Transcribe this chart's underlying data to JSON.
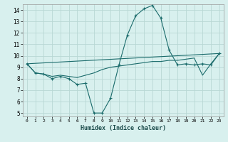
{
  "xlabel": "Humidex (Indice chaleur)",
  "xlim": [
    -0.5,
    23.5
  ],
  "ylim": [
    4.7,
    14.5
  ],
  "xticks": [
    0,
    1,
    2,
    3,
    4,
    5,
    6,
    7,
    8,
    9,
    10,
    11,
    12,
    13,
    14,
    15,
    16,
    17,
    18,
    19,
    20,
    21,
    22,
    23
  ],
  "yticks": [
    5,
    6,
    7,
    8,
    9,
    10,
    11,
    12,
    13,
    14
  ],
  "bg_color": "#d8f0ee",
  "grid_color": "#b8d8d4",
  "line_color": "#1a6b6b",
  "line1_x": [
    0,
    1,
    2,
    3,
    4,
    5,
    6,
    7,
    8,
    9,
    10,
    11,
    12,
    13,
    14,
    15,
    16,
    17,
    18,
    19,
    20,
    21,
    22,
    23
  ],
  "line1_y": [
    9.3,
    8.5,
    8.4,
    8.0,
    8.2,
    8.0,
    7.5,
    7.6,
    5.0,
    5.0,
    6.3,
    9.2,
    11.8,
    13.5,
    14.1,
    14.4,
    13.3,
    10.5,
    9.2,
    9.3,
    9.2,
    9.3,
    9.2,
    10.2
  ],
  "line2_x": [
    0,
    23
  ],
  "line2_y": [
    9.3,
    10.2
  ],
  "line3_x": [
    0,
    1,
    2,
    3,
    4,
    5,
    6,
    7,
    8,
    9,
    10,
    11,
    12,
    13,
    14,
    15,
    16,
    17,
    18,
    19,
    20,
    21,
    22,
    23
  ],
  "line3_y": [
    9.3,
    8.5,
    8.4,
    8.2,
    8.3,
    8.2,
    8.1,
    8.3,
    8.5,
    8.8,
    9.0,
    9.1,
    9.2,
    9.3,
    9.4,
    9.5,
    9.5,
    9.6,
    9.6,
    9.7,
    9.8,
    8.3,
    9.3,
    10.2
  ]
}
